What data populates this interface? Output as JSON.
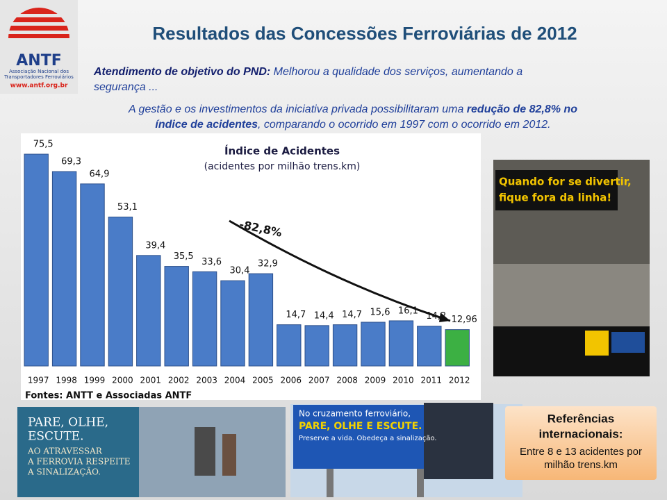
{
  "header": {
    "title": "Resultados das Concessões Ferroviárias de 2012",
    "logo": {
      "name": "ANTF",
      "line_1": "Associação Nacional dos",
      "line_2": "Transportadores Ferroviários",
      "url": "www.antf.org.br"
    }
  },
  "intro": {
    "lead": "Atendimento de objetivo do PND:",
    "text_1": " Melhorou a qualidade dos serviços, aumentando a",
    "text_2": "segurança ...",
    "p2_1": "A gestão e os investimentos da iniciativa privada possibilitaram uma ",
    "p2_bold_1": "redução de 82,8% no",
    "p2_bold_2": "índice de acidentes",
    "p2_2": ", comparando o ocorrido em 1997 com o ocorrido em 2012."
  },
  "chart_data": {
    "type": "bar",
    "title": "Índice de Acidentes",
    "subtitle": "(acidentes por milhão trens.km)",
    "categories": [
      "1997",
      "1998",
      "1999",
      "2000",
      "2001",
      "2002",
      "2003",
      "2004",
      "2005",
      "2006",
      "2007",
      "2008",
      "2009",
      "2010",
      "2011",
      "2012"
    ],
    "values": [
      75.5,
      69.3,
      64.9,
      53.1,
      39.4,
      35.5,
      33.6,
      30.4,
      32.9,
      14.7,
      14.4,
      14.7,
      15.6,
      16.1,
      14.2,
      12.96
    ],
    "value_labels": [
      "75,5",
      "69,3",
      "64,9",
      "53,1",
      "39,4",
      "35,5",
      "33,6",
      "30,4",
      "32,9",
      "14,7",
      "14,4",
      "14,7",
      "15,6",
      "16,1",
      "14,2",
      "12,96"
    ],
    "colors": [
      "#4a7cc8",
      "#4a7cc8",
      "#4a7cc8",
      "#4a7cc8",
      "#4a7cc8",
      "#4a7cc8",
      "#4a7cc8",
      "#4a7cc8",
      "#4a7cc8",
      "#4a7cc8",
      "#4a7cc8",
      "#4a7cc8",
      "#4a7cc8",
      "#4a7cc8",
      "#4a7cc8",
      "#3cb043"
    ],
    "annotation": "-82,8%",
    "source": "Fontes: ANTT e Associadas ANTF"
  },
  "photos": {
    "ad_1": "Quando for se divertir,",
    "ad_2": "fique fora da linha!",
    "sign_1": "PARE, OLHE,",
    "sign_2": "ESCUTE.",
    "sign_3": "AO ATRAVESSAR",
    "sign_4": "A FERROVIA RESPEITE",
    "sign_5": "A SINALIZAÇÃO.",
    "billboard_1": "No cruzamento ferroviário,",
    "billboard_2": "PARE, OLHE E ESCUTE.",
    "billboard_3": "Preserve a vida. Obedeça a sinalização."
  },
  "references": {
    "title_1": "Referências",
    "title_2": "internacionais:",
    "text_1": "Entre 8 e 13 acidentes por",
    "text_2": "milhão trens.km"
  }
}
